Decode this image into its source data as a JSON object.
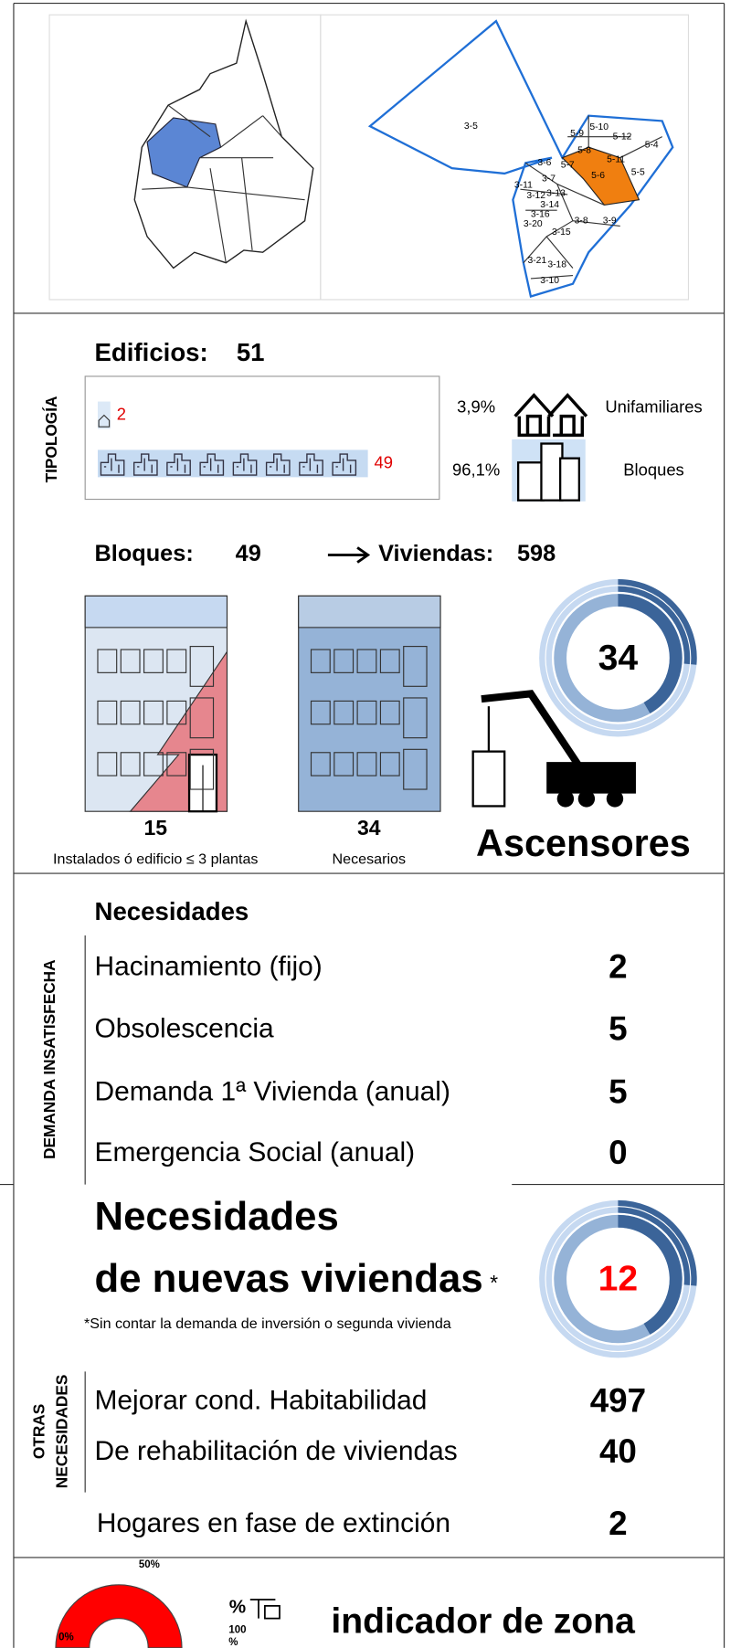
{
  "map": {
    "labels": [
      "3-5",
      "5-9",
      "5-10",
      "5-12",
      "5-4",
      "5-8",
      "5-11",
      "5-6",
      "5-5",
      "3-6",
      "5-7",
      "3-7",
      "3-11",
      "3-12",
      "3-13",
      "3-14",
      "3-16",
      "3-20",
      "3-8",
      "3-9",
      "3-15",
      "3-21",
      "3-18",
      "3-10"
    ]
  },
  "tipologia": {
    "section": "TIPOLOGÍA",
    "title": "Edificios:",
    "total": "51",
    "unifamiliares_count": "2",
    "bloques_count": "49",
    "unifamiliares_pct": "3,9%",
    "bloques_pct": "96,1%",
    "unifamiliares_label": "Unifamiliares",
    "bloques_label": "Bloques"
  },
  "ascensores": {
    "bloques_label": "Bloques:",
    "bloques": "49",
    "viviendas_label": "Viviendas:",
    "viviendas": "598",
    "instalados": "15",
    "instalados_label": "Instalados ó edificio ≤ 3 plantas",
    "necesarios": "34",
    "necesarios_label": "Necesarios",
    "donut_value": "34",
    "title": "Ascensores"
  },
  "demanda": {
    "section": "DEMANDA INSATISFECHA",
    "title": "Necesidades",
    "rows": [
      [
        "Hacinamiento (fijo)",
        "2"
      ],
      [
        "Obsolescencia",
        "5"
      ],
      [
        "Demanda 1ª Vivienda (anual)",
        "5"
      ],
      [
        "Emergencia Social (anual)",
        "0"
      ]
    ]
  },
  "nuevas": {
    "title_1": "Necesidades",
    "title_2": "de nuevas viviendas",
    "asterisk": "*",
    "note": "*Sin contar la demanda de inversión o segunda vivienda",
    "value": "12"
  },
  "otras": {
    "section_1": "OTRAS",
    "section_2": "NECESIDADES",
    "rows": [
      [
        "Mejorar cond. Habitabilidad",
        "497"
      ],
      [
        "De rehabilitación de viviendas",
        "40"
      ]
    ],
    "hogares_label": "Hogares en fase de extinción",
    "hogares": "2"
  },
  "indicador": {
    "gauge_mid": "50%",
    "gauge_min": "0%",
    "legend_top": "%",
    "legend_max": "100",
    "legend_unit": "%",
    "title": "indicador de zona"
  }
}
